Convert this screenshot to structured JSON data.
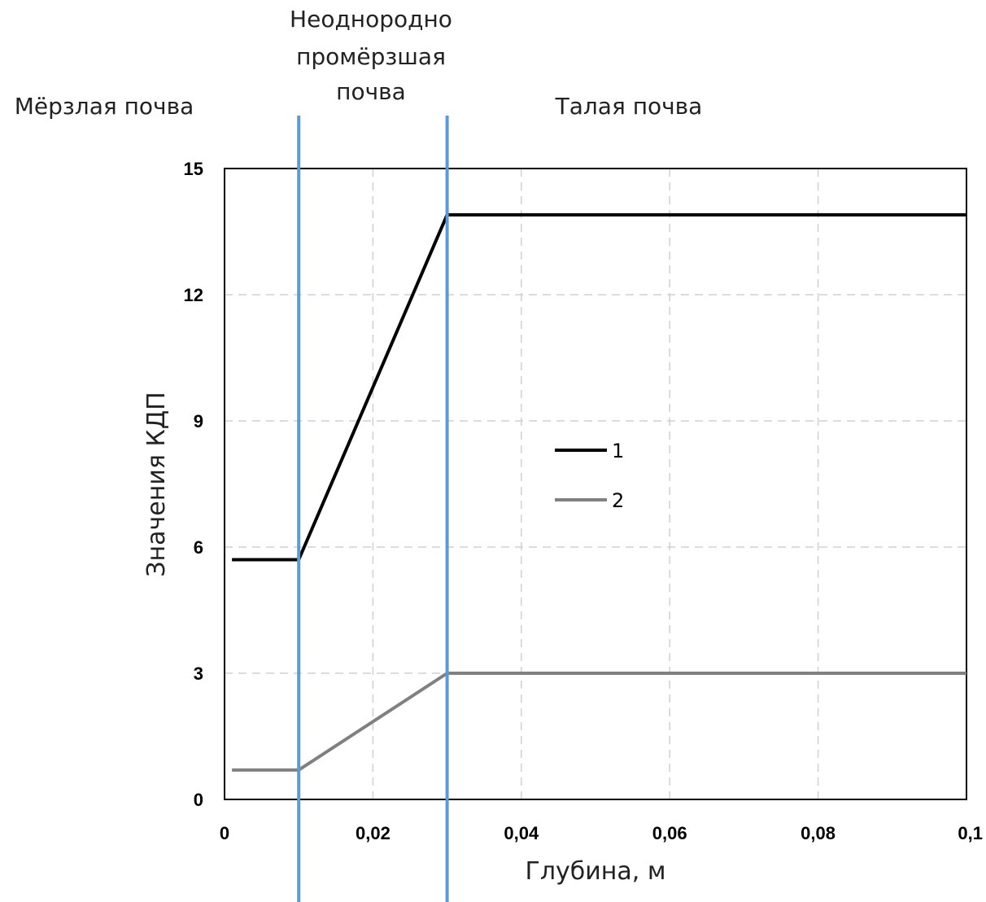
{
  "chart_data": {
    "type": "line",
    "title": "",
    "xlabel": "Глубина, м",
    "ylabel": "Значения КДП",
    "xlim": [
      0,
      0.1
    ],
    "ylim": [
      0,
      15
    ],
    "x_ticks": [
      "0",
      "0,02",
      "0,04",
      "0,06",
      "0,08",
      "0,1"
    ],
    "x_tick_values": [
      0,
      0.02,
      0.04,
      0.06,
      0.08,
      0.1
    ],
    "y_ticks": [
      "0",
      "3",
      "6",
      "9",
      "12",
      "15"
    ],
    "y_tick_values": [
      0,
      3,
      6,
      9,
      12,
      15
    ],
    "grid": true,
    "legend_position": "center",
    "series": [
      {
        "name": "1",
        "color": "#000000",
        "x": [
          0.001,
          0.01,
          0.03,
          0.1
        ],
        "y": [
          5.7,
          5.7,
          13.9,
          13.9
        ]
      },
      {
        "name": "2",
        "color": "#808080",
        "x": [
          0.001,
          0.01,
          0.03,
          0.1
        ],
        "y": [
          0.7,
          0.7,
          3.0,
          3.0
        ]
      }
    ],
    "zone_boundaries": [
      0.01,
      0.03
    ],
    "zone_boundary_color": "#5b9bd5",
    "zones": {
      "frozen": "Мёрзлая почва",
      "mixed_line1": "Неоднородно",
      "mixed_line2": "промёрзшая",
      "mixed_line3": "почва",
      "thawed": "Талая почва"
    }
  }
}
